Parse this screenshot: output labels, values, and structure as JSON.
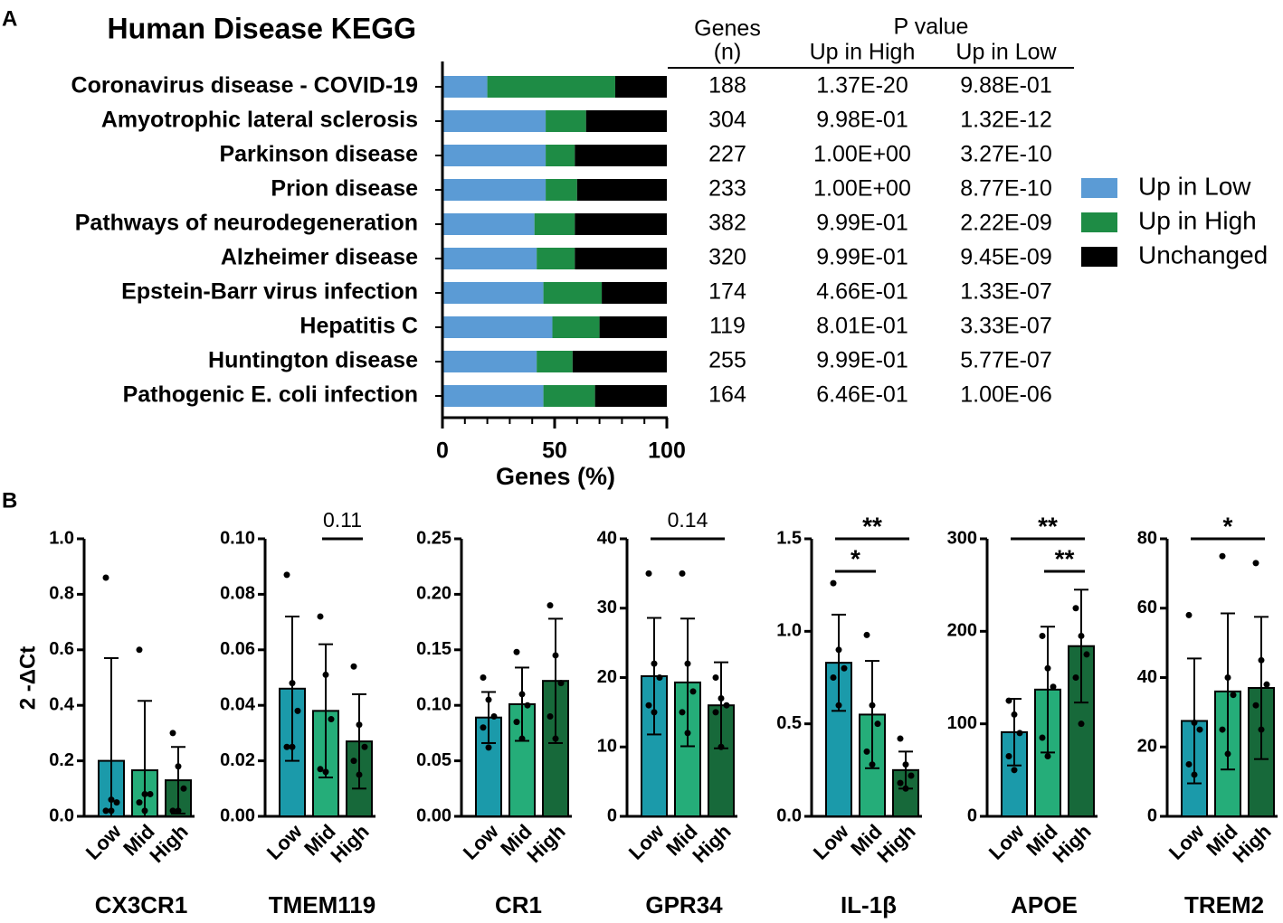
{
  "panels": [
    "A",
    "B"
  ],
  "table": {
    "headers": {
      "genes": "Genes",
      "genes_unit": "(n)",
      "pvalue": "P value",
      "up_high": "Up in High",
      "up_low": "Up in Low"
    },
    "rows": [
      [
        188,
        "1.37E-20",
        "9.88E-01"
      ],
      [
        304,
        "9.98E-01",
        "1.32E-12"
      ],
      [
        227,
        "1.00E+00",
        "3.27E-10"
      ],
      [
        233,
        "1.00E+00",
        "8.77E-10"
      ],
      [
        382,
        "9.99E-01",
        "2.22E-09"
      ],
      [
        320,
        "9.99E-01",
        "9.45E-09"
      ],
      [
        174,
        "4.66E-01",
        "1.33E-07"
      ],
      [
        119,
        "8.01E-01",
        "3.33E-07"
      ],
      [
        255,
        "9.99E-01",
        "5.77E-07"
      ],
      [
        164,
        "6.46E-01",
        "1.00E-06"
      ]
    ]
  },
  "chart_data": [
    {
      "type": "hbar_stacked",
      "title": "Human Disease KEGG",
      "xlabel": "Genes (%)",
      "categories": [
        "Coronavirus disease - COVID-19",
        "Amyotrophic lateral sclerosis",
        "Parkinson disease",
        "Prion disease",
        "Pathways of neurodegeneration",
        "Alzheimer disease",
        "Epstein-Barr virus infection",
        "Hepatitis C",
        "Huntington disease",
        "Pathogenic E. coli infection"
      ],
      "series": [
        {
          "name": "Up in Low",
          "color": "#5b9bd5",
          "values": [
            20,
            46,
            46,
            46,
            41,
            42,
            45,
            49,
            42,
            45
          ]
        },
        {
          "name": "Up in High",
          "color": "#1e8c45",
          "values": [
            57,
            18,
            13,
            14,
            18,
            17,
            26,
            21,
            16,
            23
          ]
        },
        {
          "name": "Unchanged",
          "color": "#000000",
          "values": [
            23,
            36,
            41,
            40,
            41,
            41,
            29,
            30,
            42,
            32
          ]
        }
      ],
      "xlim": [
        0,
        100
      ],
      "xticks": [
        0,
        50,
        100
      ],
      "xminorticks": [
        10,
        20,
        30,
        40,
        60,
        70,
        80,
        90
      ]
    },
    {
      "type": "bar",
      "title": "CX3CR1",
      "ylabel": "2 -ΔCt",
      "categories": [
        "Low",
        "Mid",
        "High"
      ],
      "colors": [
        "#1b9aaa",
        "#25ad79",
        "#17693a"
      ],
      "values": [
        0.2,
        0.166,
        0.13
      ],
      "errors": [
        0.37,
        0.25,
        0.12
      ],
      "points": [
        [
          0.86,
          0.06,
          0.05,
          0.02,
          0.02
        ],
        [
          0.6,
          0.08,
          0.08,
          0.05,
          0.02
        ],
        [
          0.3,
          0.18,
          0.1,
          0.02,
          0.02
        ]
      ],
      "ylim": [
        0,
        1
      ],
      "yticks": [
        {
          "value": 0,
          "label": "0.0"
        },
        0.2,
        0.4,
        0.6,
        0.8,
        {
          "value": 1,
          "label": "1.0"
        }
      ],
      "annotations": []
    },
    {
      "type": "bar",
      "title": "TMEM119",
      "categories": [
        "Low",
        "Mid",
        "High"
      ],
      "colors": [
        "#1b9aaa",
        "#25ad79",
        "#17693a"
      ],
      "values": [
        0.046,
        0.038,
        0.027
      ],
      "errors": [
        0.026,
        0.024,
        0.017
      ],
      "points": [
        [
          0.087,
          0.048,
          0.038,
          0.025,
          0.025
        ],
        [
          0.072,
          0.051,
          0.035,
          0.017,
          0.016
        ],
        [
          0.054,
          0.033,
          0.025,
          0.02,
          0.015
        ]
      ],
      "ylim": [
        0,
        0.1
      ],
      "yticks": [
        {
          "value": 0,
          "label": "0.00"
        },
        {
          "value": 0.02,
          "label": "0.02"
        },
        {
          "value": 0.04,
          "label": "0.04"
        },
        {
          "value": 0.06,
          "label": "0.06"
        },
        {
          "value": 0.08,
          "label": "0.08"
        },
        {
          "value": 0.1,
          "label": "0.10"
        }
      ],
      "annotations": [
        {
          "text": "0.11",
          "between": [
            "Mid",
            "High"
          ]
        }
      ]
    },
    {
      "type": "bar",
      "title": "CR1",
      "categories": [
        "Low",
        "Mid",
        "High"
      ],
      "colors": [
        "#1b9aaa",
        "#25ad79",
        "#17693a"
      ],
      "values": [
        0.089,
        0.101,
        0.122
      ],
      "errors": [
        0.023,
        0.033,
        0.056
      ],
      "points": [
        [
          0.125,
          0.105,
          0.09,
          0.08,
          0.062
        ],
        [
          0.148,
          0.11,
          0.1,
          0.085,
          0.07
        ],
        [
          0.19,
          0.145,
          0.12,
          0.09,
          0.07
        ]
      ],
      "ylim": [
        0,
        0.25
      ],
      "yticks": [
        {
          "value": 0,
          "label": "0.00"
        },
        {
          "value": 0.05,
          "label": "0.05"
        },
        {
          "value": 0.1,
          "label": "0.10"
        },
        {
          "value": 0.15,
          "label": "0.15"
        },
        {
          "value": 0.2,
          "label": "0.20"
        },
        {
          "value": 0.25,
          "label": "0.25"
        }
      ],
      "annotations": []
    },
    {
      "type": "bar",
      "title": "GPR34",
      "categories": [
        "Low",
        "Mid",
        "High"
      ],
      "colors": [
        "#1b9aaa",
        "#25ad79",
        "#17693a"
      ],
      "values": [
        20.2,
        19.3,
        16
      ],
      "errors": [
        8.4,
        9.2,
        6.2
      ],
      "points": [
        [
          35,
          22,
          20,
          16,
          15
        ],
        [
          35,
          22,
          18,
          15,
          12
        ],
        [
          20,
          17,
          16,
          15,
          10
        ]
      ],
      "ylim": [
        0,
        40
      ],
      "yticks": [
        0,
        10,
        20,
        30,
        40
      ],
      "annotations": [
        {
          "text": "0.14",
          "between": [
            "Low",
            "High"
          ]
        }
      ]
    },
    {
      "type": "bar",
      "title": "IL-1β",
      "categories": [
        "Low",
        "Mid",
        "High"
      ],
      "colors": [
        "#1b9aaa",
        "#25ad79",
        "#17693a"
      ],
      "values": [
        0.83,
        0.55,
        0.25
      ],
      "errors": [
        0.26,
        0.29,
        0.1
      ],
      "points": [
        [
          1.26,
          0.9,
          0.8,
          0.75,
          0.6
        ],
        [
          0.98,
          0.6,
          0.5,
          0.35,
          0.28
        ],
        [
          0.42,
          0.28,
          0.22,
          0.18,
          0.15
        ]
      ],
      "ylim": [
        0,
        1.5
      ],
      "yticks": [
        {
          "value": 0,
          "label": "0.0"
        },
        0.5,
        {
          "value": 1,
          "label": "1.0"
        },
        1.5
      ],
      "annotations": [
        {
          "text": "**",
          "between": [
            "Low",
            "High"
          ]
        },
        {
          "text": "*",
          "between": [
            "Low",
            "Mid"
          ]
        }
      ]
    },
    {
      "type": "bar",
      "title": "APOE",
      "categories": [
        "Low",
        "Mid",
        "High"
      ],
      "colors": [
        "#1b9aaa",
        "#25ad79",
        "#17693a"
      ],
      "values": [
        91,
        137,
        184
      ],
      "errors": [
        36,
        68,
        61
      ],
      "points": [
        [
          125,
          110,
          90,
          65,
          50
        ],
        [
          195,
          160,
          140,
          85,
          65
        ],
        [
          225,
          195,
          175,
          150,
          100
        ]
      ],
      "ylim": [
        0,
        300
      ],
      "yticks": [
        0,
        100,
        200,
        300
      ],
      "annotations": [
        {
          "text": "**",
          "between": [
            "Low",
            "High"
          ]
        },
        {
          "text": "**",
          "between": [
            "Mid",
            "High"
          ]
        }
      ]
    },
    {
      "type": "bar",
      "title": "TREM2",
      "categories": [
        "Low",
        "Mid",
        "High"
      ],
      "colors": [
        "#1b9aaa",
        "#25ad79",
        "#17693a"
      ],
      "values": [
        27.5,
        36,
        37
      ],
      "errors": [
        18,
        22.5,
        20.5
      ],
      "points": [
        [
          58,
          27,
          25,
          15,
          12
        ],
        [
          75,
          40,
          35,
          25,
          18
        ],
        [
          73,
          45,
          38,
          32,
          25
        ]
      ],
      "ylim": [
        0,
        80
      ],
      "yticks": [
        0,
        20,
        40,
        60,
        80
      ],
      "annotations": [
        {
          "text": "*",
          "between": [
            "Low",
            "High"
          ]
        }
      ]
    }
  ]
}
